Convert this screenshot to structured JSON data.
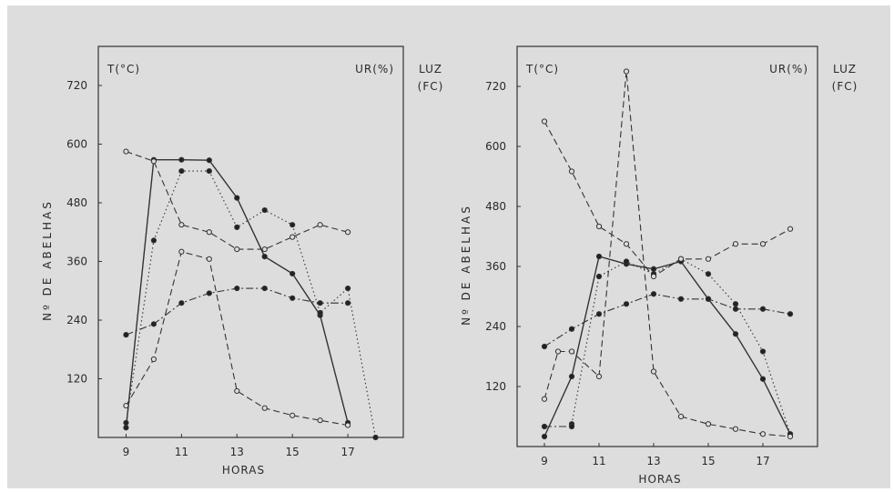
{
  "chart_data": [
    {
      "type": "line",
      "title": "",
      "xlabel": "HORAS",
      "ylabel": "Nº DE ABELHAS",
      "corner_left": "T(°C)",
      "corner_right": "UR(%)",
      "right_label_top": "LUZ",
      "right_label_bottom": "(FC)",
      "xlim": [
        8,
        19
      ],
      "ylim": [
        0,
        800
      ],
      "xticks": [
        9,
        11,
        13,
        15,
        17
      ],
      "yticks": [
        120,
        240,
        360,
        480,
        600,
        720
      ],
      "series": [
        {
          "style": "solid",
          "marker": "filled",
          "x": [
            9,
            10,
            11,
            12,
            13,
            14,
            15,
            16,
            17
          ],
          "y": [
            20,
            568,
            568,
            567,
            490,
            370,
            335,
            250,
            30
          ]
        },
        {
          "style": "dotted",
          "marker": "filled",
          "x": [
            9,
            10,
            11,
            12,
            13,
            14,
            15,
            16,
            17,
            18
          ],
          "y": [
            30,
            403,
            545,
            545,
            430,
            465,
            435,
            255,
            305,
            0
          ]
        },
        {
          "style": "dashed",
          "marker": "open",
          "x": [
            9,
            10,
            11,
            12,
            13,
            14,
            15,
            16,
            17
          ],
          "y": [
            585,
            565,
            435,
            420,
            385,
            385,
            410,
            435,
            420
          ]
        },
        {
          "style": "dashdot",
          "marker": "filled",
          "x": [
            9,
            10,
            11,
            12,
            13,
            14,
            15,
            16,
            17
          ],
          "y": [
            210,
            232,
            275,
            295,
            305,
            305,
            285,
            275,
            275
          ]
        },
        {
          "style": "dashed",
          "marker": "open",
          "x": [
            9,
            10,
            11,
            12,
            13,
            14,
            15,
            16,
            17
          ],
          "y": [
            65,
            160,
            380,
            365,
            95,
            60,
            45,
            35,
            25
          ]
        }
      ]
    },
    {
      "type": "line",
      "title": "",
      "xlabel": "HORAS",
      "ylabel": "Nº DE ABELHAS",
      "corner_left": "T(°C)",
      "corner_right": "UR(%)",
      "right_label_top": "LUZ",
      "right_label_bottom": "(FC)",
      "xlim": [
        8,
        19
      ],
      "ylim": [
        0,
        800
      ],
      "xticks": [
        9,
        11,
        13,
        15,
        17
      ],
      "yticks": [
        120,
        240,
        360,
        480,
        600,
        720
      ],
      "series": [
        {
          "style": "solid",
          "marker": "filled",
          "x": [
            9,
            10,
            11,
            12,
            13,
            14,
            15,
            16,
            17,
            18
          ],
          "y": [
            20,
            140,
            380,
            365,
            355,
            370,
            295,
            225,
            135,
            25
          ]
        },
        {
          "style": "dotted",
          "marker": "filled",
          "x": [
            10,
            11,
            12,
            13,
            14,
            15,
            16,
            17,
            18
          ],
          "y": [
            45,
            340,
            370,
            345,
            375,
            345,
            285,
            190,
            25
          ]
        },
        {
          "style": "dashed",
          "marker": "open",
          "x": [
            9,
            10,
            11,
            12,
            13,
            14,
            15,
            16,
            17,
            18
          ],
          "y": [
            650,
            550,
            440,
            405,
            340,
            375,
            375,
            405,
            405,
            435
          ]
        },
        {
          "style": "dashdot",
          "marker": "filled",
          "x": [
            9,
            10,
            11,
            12,
            13,
            14,
            15,
            16,
            17,
            18
          ],
          "y": [
            200,
            235,
            265,
            285,
            305,
            295,
            295,
            275,
            275,
            265
          ]
        },
        {
          "style": "dashed",
          "marker": "open",
          "x": [
            9,
            9.5,
            10,
            11,
            12,
            13,
            14,
            15,
            16,
            17,
            18
          ],
          "y": [
            95,
            190,
            190,
            140,
            750,
            150,
            60,
            45,
            35,
            25,
            20
          ]
        },
        {
          "style": "dashdot",
          "marker": "filled",
          "x": [
            9,
            10
          ],
          "y": [
            40,
            40
          ]
        }
      ]
    }
  ]
}
